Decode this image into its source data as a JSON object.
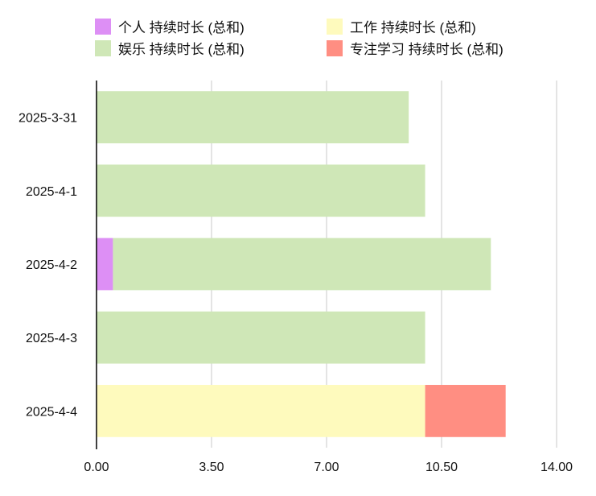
{
  "chart_data": {
    "type": "bar",
    "orientation": "horizontal",
    "stacked": true,
    "categories": [
      "2025-3-31",
      "2025-4-1",
      "2025-4-2",
      "2025-4-3",
      "2025-4-4"
    ],
    "series": [
      {
        "name": "个人 持续时长 (总和)",
        "color": "#dd8ff5",
        "values": [
          0,
          0,
          0.5,
          0,
          0
        ]
      },
      {
        "name": "工作 持续时长 (总和)",
        "color": "#fefabd",
        "values": [
          0,
          0,
          0,
          0,
          10
        ]
      },
      {
        "name": "娱乐 持续时长 (总和)",
        "color": "#cfe7b7",
        "values": [
          9.5,
          10,
          11.5,
          10,
          0
        ]
      },
      {
        "name": "专注学习 持续时长 (总和)",
        "color": "#ff8e82",
        "values": [
          0,
          0,
          0,
          0,
          2.45
        ]
      }
    ],
    "x_ticks": [
      "0.00",
      "3.50",
      "7.00",
      "10.50",
      "14.00"
    ],
    "xlim": [
      0,
      14
    ],
    "grid": true,
    "legend_position": "top"
  }
}
